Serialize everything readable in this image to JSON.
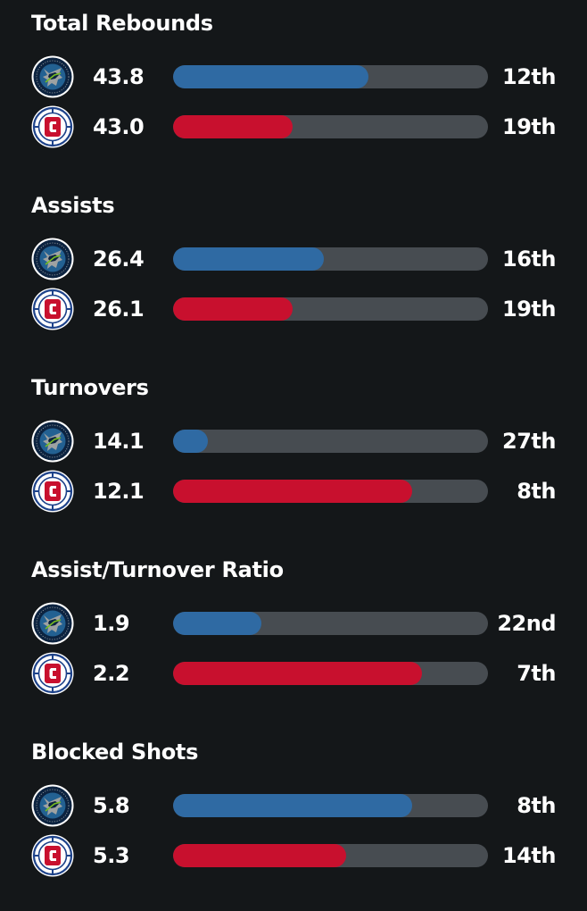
{
  "teams": {
    "timberwolves": {
      "icon": "timberwolves-logo-icon",
      "bar_color": "#2f6aa3"
    },
    "clippers": {
      "icon": "clippers-logo-icon",
      "bar_color": "#c8102e"
    }
  },
  "stats": [
    {
      "title": "Total Rebounds",
      "rows": [
        {
          "team": "timberwolves",
          "value": "43.8",
          "rank": "12th",
          "fill": 0.62
        },
        {
          "team": "clippers",
          "value": "43.0",
          "rank": "19th",
          "fill": 0.38
        }
      ]
    },
    {
      "title": "Assists",
      "rows": [
        {
          "team": "timberwolves",
          "value": "26.4",
          "rank": "16th",
          "fill": 0.48
        },
        {
          "team": "clippers",
          "value": "26.1",
          "rank": "19th",
          "fill": 0.38
        }
      ]
    },
    {
      "title": "Turnovers",
      "rows": [
        {
          "team": "timberwolves",
          "value": "14.1",
          "rank": "27th",
          "fill": 0.11
        },
        {
          "team": "clippers",
          "value": "12.1",
          "rank": "8th",
          "fill": 0.76
        }
      ]
    },
    {
      "title": "Assist/Turnover Ratio",
      "rows": [
        {
          "team": "timberwolves",
          "value": "1.9",
          "rank": "22nd",
          "fill": 0.28
        },
        {
          "team": "clippers",
          "value": "2.2",
          "rank": "7th",
          "fill": 0.79
        }
      ]
    },
    {
      "title": "Blocked Shots",
      "rows": [
        {
          "team": "timberwolves",
          "value": "5.8",
          "rank": "8th",
          "fill": 0.76
        },
        {
          "team": "clippers",
          "value": "5.3",
          "rank": "14th",
          "fill": 0.55
        }
      ]
    }
  ]
}
